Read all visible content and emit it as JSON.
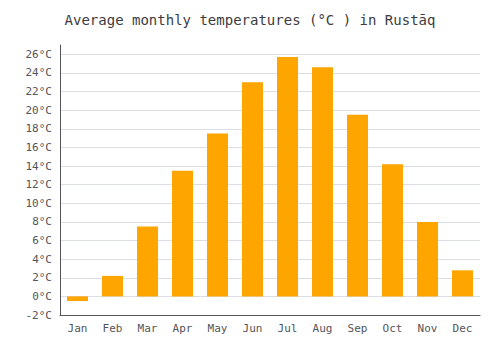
{
  "chart_data": {
    "type": "bar",
    "title": "Average monthly temperatures (°C ) in Rustāq",
    "categories": [
      "Jan",
      "Feb",
      "Mar",
      "Apr",
      "May",
      "Jun",
      "Jul",
      "Aug",
      "Sep",
      "Oct",
      "Nov",
      "Dec"
    ],
    "values": [
      -0.5,
      2.2,
      7.5,
      13.5,
      17.5,
      23.0,
      25.7,
      24.6,
      19.5,
      14.2,
      8.0,
      2.8
    ],
    "color": "#FFA500",
    "ylim": [
      -2,
      27
    ],
    "yticks": [
      {
        "value": -2,
        "label": "-2°C"
      },
      {
        "value": 0,
        "label": "0°C"
      },
      {
        "value": 2,
        "label": "2°C"
      },
      {
        "value": 4,
        "label": "4°C"
      },
      {
        "value": 6,
        "label": "6°C"
      },
      {
        "value": 8,
        "label": "8°C"
      },
      {
        "value": 10,
        "label": "10°C"
      },
      {
        "value": 12,
        "label": "12°C"
      },
      {
        "value": 14,
        "label": "14°C"
      },
      {
        "value": 16,
        "label": "16°C"
      },
      {
        "value": 18,
        "label": "18°C"
      },
      {
        "value": 20,
        "label": "20°C"
      },
      {
        "value": 22,
        "label": "22°C"
      },
      {
        "value": 24,
        "label": "24°C"
      },
      {
        "value": 26,
        "label": "26°C"
      }
    ],
    "grid": true
  }
}
